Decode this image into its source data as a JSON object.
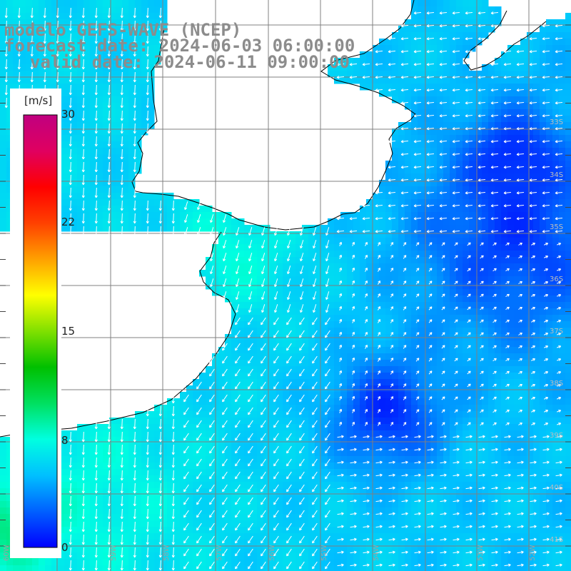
{
  "title": {
    "model": "modelo GEFS-WAVE (NCEP)",
    "forecast": "forecast date: 2024-06-03 06:00:00",
    "valid": "valid date: 2024-06-11 09:00:00"
  },
  "colorbar": {
    "unit": "[m/s]",
    "ticks": [
      "30",
      "22",
      "15",
      "8",
      "0"
    ],
    "tick_values": [
      30,
      22,
      15,
      8,
      0
    ],
    "range": [
      0,
      30
    ],
    "colors": [
      "#0000ff",
      "#0060ff",
      "#00c0ff",
      "#00ffe0",
      "#00e060",
      "#00c000",
      "#80e000",
      "#ffff00",
      "#ffa000",
      "#ff4000",
      "#ff0000",
      "#e00060",
      "#c00080"
    ]
  },
  "map": {
    "land_color": "#ffffff",
    "coast_color": "#000000",
    "grid_color": "#808080",
    "arrow_color": "#ffffff",
    "lat_labels": [
      "33S",
      "34S",
      "35S",
      "36S",
      "37S",
      "38S",
      "39S",
      "40S",
      "41S"
    ],
    "lon_labels": [
      "60W",
      "59W",
      "58W",
      "57W",
      "56W",
      "55W",
      "54W",
      "53W",
      "52W"
    ]
  }
}
